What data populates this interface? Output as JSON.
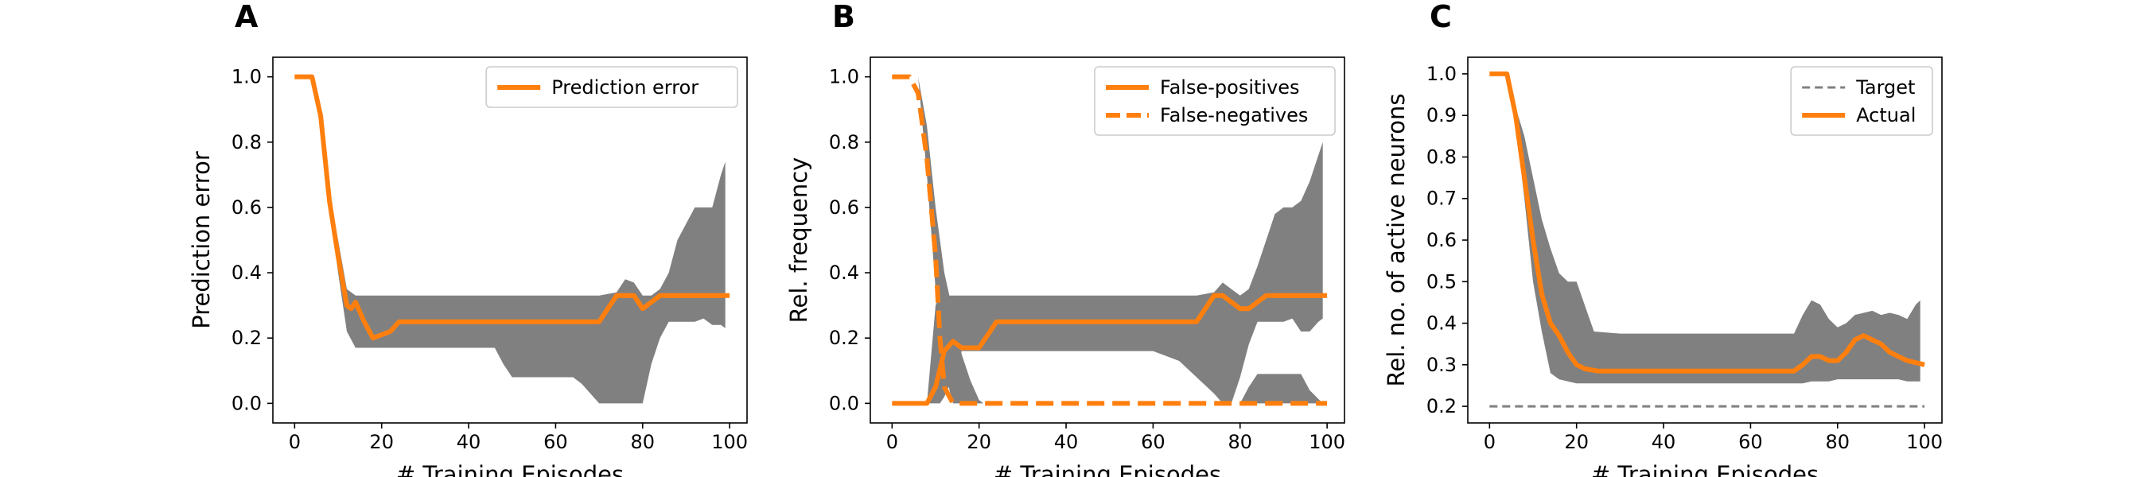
{
  "chart_data": [
    {
      "type": "line",
      "panel_label": "A",
      "xlabel": "# Training Episodes",
      "ylabel": "Prediction error",
      "xlim": [
        -5,
        104
      ],
      "ylim": [
        -0.06,
        1.06
      ],
      "xticks": [
        0,
        20,
        40,
        60,
        80,
        100
      ],
      "xtick_labels": [
        "0",
        "20",
        "40",
        "60",
        "80",
        "100"
      ],
      "yticks": [
        0.0,
        0.2,
        0.4,
        0.6,
        0.8,
        1.0
      ],
      "ytick_labels": [
        "0.0",
        "0.2",
        "0.4",
        "0.6",
        "0.8",
        "1.0"
      ],
      "grid": false,
      "legend_position": "top-right",
      "legend": [
        "Prediction error"
      ],
      "series": [
        {
          "name": "Prediction error",
          "style": "solid",
          "color": "#ff7f0e",
          "x": [
            0,
            4,
            6,
            8,
            10,
            12,
            13,
            14,
            16,
            18,
            20,
            22,
            24,
            30,
            40,
            50,
            60,
            70,
            72,
            74,
            78,
            80,
            82,
            84,
            86,
            90,
            100
          ],
          "y": [
            1.0,
            1.0,
            0.88,
            0.62,
            0.45,
            0.3,
            0.29,
            0.31,
            0.25,
            0.2,
            0.21,
            0.22,
            0.25,
            0.25,
            0.25,
            0.25,
            0.25,
            0.25,
            0.29,
            0.33,
            0.33,
            0.29,
            0.31,
            0.33,
            0.33,
            0.33,
            0.33
          ]
        }
      ],
      "bands": [
        {
          "color": "#808080",
          "x": [
            0,
            4,
            6,
            8,
            10,
            12,
            14,
            16,
            20,
            30,
            40,
            46,
            48,
            50,
            60,
            64,
            66,
            70,
            74,
            76,
            78,
            80,
            82,
            84,
            86,
            88,
            90,
            92,
            94,
            96,
            98,
            99
          ],
          "upper": [
            1.0,
            1.0,
            0.88,
            0.65,
            0.5,
            0.35,
            0.33,
            0.33,
            0.33,
            0.33,
            0.33,
            0.33,
            0.33,
            0.33,
            0.33,
            0.33,
            0.33,
            0.33,
            0.34,
            0.38,
            0.37,
            0.33,
            0.33,
            0.35,
            0.4,
            0.5,
            0.55,
            0.6,
            0.6,
            0.6,
            0.7,
            0.74
          ],
          "lower": [
            1.0,
            1.0,
            0.88,
            0.6,
            0.4,
            0.22,
            0.17,
            0.17,
            0.17,
            0.17,
            0.17,
            0.17,
            0.12,
            0.08,
            0.08,
            0.08,
            0.06,
            0.0,
            0.0,
            0.0,
            0.0,
            0.0,
            0.12,
            0.2,
            0.25,
            0.25,
            0.25,
            0.25,
            0.26,
            0.24,
            0.24,
            0.23
          ]
        }
      ]
    },
    {
      "type": "line",
      "panel_label": "B",
      "xlabel": "# Training Episodes",
      "ylabel": "Rel. frequency",
      "xlim": [
        -5,
        104
      ],
      "ylim": [
        -0.06,
        1.06
      ],
      "xticks": [
        0,
        20,
        40,
        60,
        80,
        100
      ],
      "xtick_labels": [
        "0",
        "20",
        "40",
        "60",
        "80",
        "100"
      ],
      "yticks": [
        0.0,
        0.2,
        0.4,
        0.6,
        0.8,
        1.0
      ],
      "ytick_labels": [
        "0.0",
        "0.2",
        "0.4",
        "0.6",
        "0.8",
        "1.0"
      ],
      "grid": false,
      "legend_position": "top-right",
      "legend": [
        "False-positives",
        "False-negatives"
      ],
      "series": [
        {
          "name": "False-positives",
          "style": "solid",
          "color": "#ff7f0e",
          "x": [
            0,
            8,
            10,
            12,
            14,
            16,
            18,
            20,
            22,
            24,
            30,
            40,
            50,
            60,
            70,
            72,
            74,
            76,
            78,
            80,
            82,
            84,
            86,
            90,
            100
          ],
          "y": [
            0.0,
            0.0,
            0.05,
            0.16,
            0.19,
            0.17,
            0.17,
            0.17,
            0.21,
            0.25,
            0.25,
            0.25,
            0.25,
            0.25,
            0.25,
            0.29,
            0.33,
            0.33,
            0.31,
            0.29,
            0.29,
            0.31,
            0.33,
            0.33,
            0.33
          ]
        },
        {
          "name": "False-negatives",
          "style": "dashed",
          "color": "#ff7f0e",
          "x": [
            0,
            4,
            6,
            8,
            10,
            11,
            12,
            14,
            16,
            20,
            30,
            40,
            60,
            80,
            100
          ],
          "y": [
            1.0,
            1.0,
            0.95,
            0.75,
            0.45,
            0.2,
            0.05,
            0.0,
            0.0,
            0.0,
            0.0,
            0.0,
            0.0,
            0.0,
            0.0
          ]
        }
      ],
      "bands": [
        {
          "color": "#808080",
          "x": [
            0,
            8,
            10,
            11,
            12,
            13,
            14,
            16,
            18,
            20,
            30,
            40,
            48,
            50,
            60,
            66,
            70,
            74,
            76,
            78,
            80,
            82,
            84,
            86,
            88,
            90,
            92,
            94,
            96,
            98,
            99
          ],
          "upper": [
            0.0,
            0.0,
            0.3,
            0.33,
            0.33,
            0.33,
            0.33,
            0.33,
            0.33,
            0.33,
            0.33,
            0.33,
            0.33,
            0.33,
            0.33,
            0.33,
            0.33,
            0.34,
            0.37,
            0.35,
            0.33,
            0.35,
            0.42,
            0.5,
            0.58,
            0.6,
            0.6,
            0.62,
            0.68,
            0.76,
            0.8
          ],
          "lower": [
            0.0,
            0.0,
            0.0,
            0.0,
            0.02,
            0.05,
            0.1,
            0.16,
            0.16,
            0.16,
            0.16,
            0.16,
            0.16,
            0.16,
            0.16,
            0.13,
            0.08,
            0.03,
            0.0,
            0.0,
            0.08,
            0.18,
            0.25,
            0.25,
            0.25,
            0.25,
            0.26,
            0.22,
            0.22,
            0.25,
            0.26
          ]
        },
        {
          "color": "#808080",
          "x": [
            6,
            8,
            10,
            12,
            14,
            16,
            18,
            20,
            21
          ],
          "upper": [
            1.0,
            0.85,
            0.6,
            0.4,
            0.28,
            0.15,
            0.07,
            0.01,
            0.0
          ],
          "lower": [
            1.0,
            0.7,
            0.35,
            0.1,
            0.0,
            0.0,
            0.0,
            0.0,
            0.0
          ]
        },
        {
          "color": "#808080",
          "x": [
            80,
            82,
            84,
            86,
            88,
            90,
            92,
            94,
            96,
            99
          ],
          "upper": [
            0.0,
            0.05,
            0.09,
            0.09,
            0.09,
            0.09,
            0.09,
            0.09,
            0.04,
            0.0
          ],
          "lower": [
            0.0,
            0.0,
            0.0,
            0.0,
            0.0,
            0.0,
            0.0,
            0.0,
            0.0,
            0.0
          ]
        }
      ]
    },
    {
      "type": "line",
      "panel_label": "C",
      "xlabel": "# Training Episodes",
      "ylabel": "Rel. no. of active neurons",
      "xlim": [
        -5,
        104
      ],
      "ylim": [
        0.16,
        1.04
      ],
      "xticks": [
        0,
        20,
        40,
        60,
        80,
        100
      ],
      "xtick_labels": [
        "0",
        "20",
        "40",
        "60",
        "80",
        "100"
      ],
      "yticks": [
        0.2,
        0.3,
        0.4,
        0.5,
        0.6,
        0.7,
        0.8,
        0.9,
        1.0
      ],
      "ytick_labels": [
        "0.2",
        "0.3",
        "0.4",
        "0.5",
        "0.6",
        "0.7",
        "0.8",
        "0.9",
        "1.0"
      ],
      "grid": false,
      "legend_position": "top-right",
      "legend": [
        "Target",
        "Actual"
      ],
      "series": [
        {
          "name": "Target",
          "style": "dashed",
          "color": "#808080",
          "x": [
            0,
            100
          ],
          "y": [
            0.2,
            0.2
          ]
        },
        {
          "name": "Actual",
          "style": "solid",
          "color": "#ff7f0e",
          "x": [
            0,
            4,
            6,
            8,
            10,
            12,
            14,
            16,
            18,
            20,
            22,
            25,
            30,
            40,
            50,
            60,
            70,
            72,
            74,
            76,
            78,
            80,
            82,
            84,
            86,
            88,
            90,
            92,
            94,
            96,
            98,
            100
          ],
          "y": [
            1.0,
            1.0,
            0.9,
            0.75,
            0.6,
            0.47,
            0.4,
            0.37,
            0.33,
            0.3,
            0.29,
            0.285,
            0.285,
            0.285,
            0.285,
            0.285,
            0.285,
            0.3,
            0.32,
            0.32,
            0.31,
            0.31,
            0.33,
            0.36,
            0.37,
            0.36,
            0.35,
            0.33,
            0.32,
            0.31,
            0.305,
            0.3
          ]
        }
      ],
      "bands": [
        {
          "color": "#808080",
          "x": [
            0,
            4,
            6,
            8,
            10,
            12,
            14,
            16,
            18,
            20,
            22,
            24,
            30,
            40,
            60,
            70,
            72,
            74,
            76,
            78,
            80,
            82,
            84,
            86,
            88,
            90,
            92,
            94,
            96,
            98,
            99
          ],
          "upper": [
            1.0,
            1.0,
            0.92,
            0.85,
            0.75,
            0.65,
            0.58,
            0.52,
            0.5,
            0.5,
            0.44,
            0.38,
            0.375,
            0.375,
            0.375,
            0.375,
            0.42,
            0.455,
            0.445,
            0.41,
            0.39,
            0.4,
            0.42,
            0.425,
            0.43,
            0.42,
            0.425,
            0.42,
            0.41,
            0.445,
            0.455
          ],
          "lower": [
            1.0,
            1.0,
            0.88,
            0.7,
            0.5,
            0.38,
            0.28,
            0.265,
            0.26,
            0.255,
            0.255,
            0.255,
            0.255,
            0.255,
            0.255,
            0.255,
            0.255,
            0.26,
            0.26,
            0.26,
            0.265,
            0.265,
            0.265,
            0.265,
            0.265,
            0.265,
            0.265,
            0.265,
            0.26,
            0.26,
            0.26
          ]
        }
      ]
    }
  ]
}
